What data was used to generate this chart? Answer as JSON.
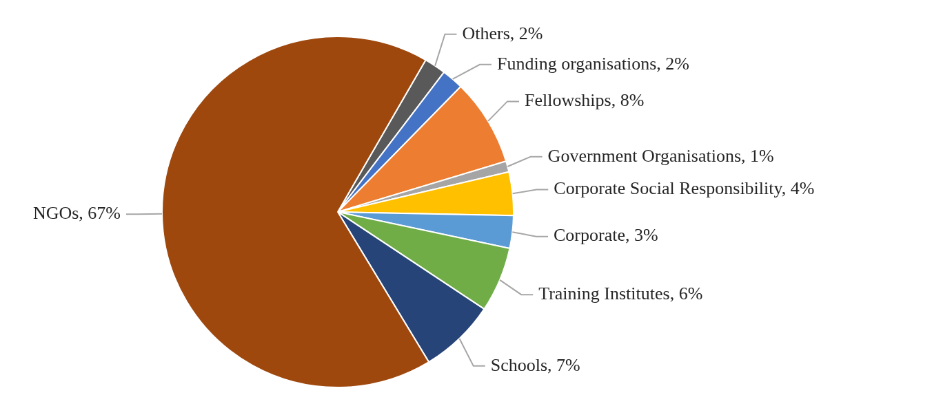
{
  "chart_data": {
    "type": "pie",
    "categories": [
      "Others",
      "Funding organisations",
      "Fellowships",
      "Government Organisations",
      "Corporate Social Responsibility",
      "Corporate",
      "Training Institutes",
      "Schools",
      "NGOs"
    ],
    "values": [
      2,
      2,
      8,
      1,
      4,
      3,
      6,
      7,
      67
    ],
    "colors": [
      "#595959",
      "#4472c4",
      "#ed7d31",
      "#a5a5a5",
      "#ffc000",
      "#5b9bd5",
      "#70ad47",
      "#264478",
      "#9e480e"
    ],
    "value_labels": [
      "2%",
      "2%",
      "8%",
      "1%",
      "4%",
      "3%",
      "6%",
      "7%",
      "67%"
    ],
    "legend": false
  }
}
